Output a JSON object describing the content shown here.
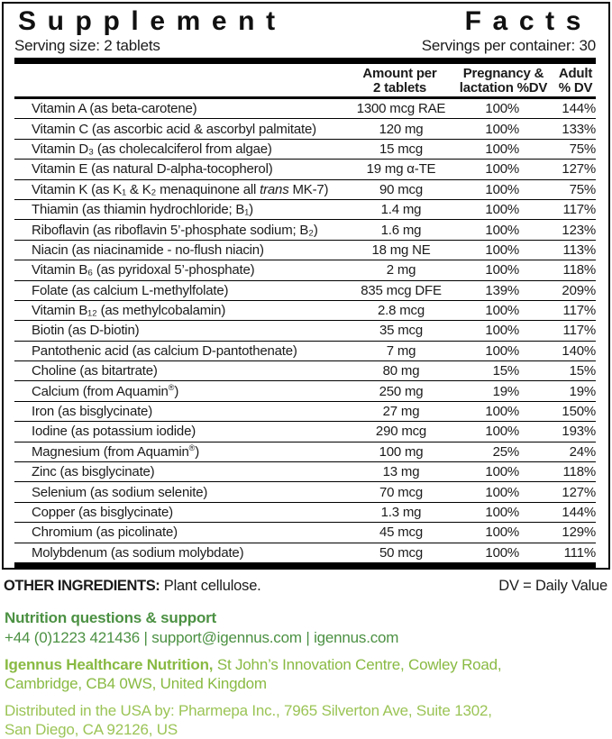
{
  "accent_colors": {
    "dark_green": "#4C9143",
    "lime_green": "#89BA43",
    "light_green": "#9BC456"
  },
  "header": {
    "title_left": "Supplement",
    "title_right": "Facts",
    "serving_size": "Serving size: 2 tablets",
    "servings_per_container": "Servings per container: 30"
  },
  "columns": {
    "amount_l1": "Amount per",
    "amount_l2": "2 tablets",
    "pregnancy_l1": "Pregnancy &",
    "pregnancy_l2": "lactation %DV",
    "adult_l1": "Adult",
    "adult_l2": "% DV"
  },
  "rows": [
    {
      "name": "Vitamin A (as beta-carotene)",
      "amount": "1300 mcg RAE",
      "pregnancy": "100%",
      "adult": "144%"
    },
    {
      "name": "Vitamin C (as ascorbic acid & ascorbyl palmitate)",
      "amount": "120 mg",
      "pregnancy": "100%",
      "adult": "133%"
    },
    {
      "name": "Vitamin D₃ (as cholecalciferol from algae)",
      "amount": "15 mcg",
      "pregnancy": "100%",
      "adult": "75%"
    },
    {
      "name": "Vitamin E (as natural D-alpha-tocopherol)",
      "amount": "19 mg α-TE",
      "pregnancy": "100%",
      "adult": "127%"
    },
    {
      "name": "Vitamin K (as K₁ & K₂ menaquinone all trans MK-7)",
      "em": "trans",
      "amount": "90 mcg",
      "pregnancy": "100%",
      "adult": "75%"
    },
    {
      "name": "Thiamin (as thiamin hydrochloride; B₁)",
      "amount": "1.4 mg",
      "pregnancy": "100%",
      "adult": "117%"
    },
    {
      "name": "Riboflavin (as riboflavin 5’-phosphate sodium; B₂)",
      "amount": "1.6 mg",
      "pregnancy": "100%",
      "adult": "123%"
    },
    {
      "name": "Niacin (as niacinamide - no-flush niacin)",
      "amount": "18 mg NE",
      "pregnancy": "100%",
      "adult": "113%"
    },
    {
      "name": "Vitamin B₆ (as pyridoxal 5’-phosphate)",
      "amount": "2 mg",
      "pregnancy": "100%",
      "adult": "118%"
    },
    {
      "name": "Folate (as calcium L-methylfolate)",
      "amount": "835 mcg DFE",
      "pregnancy": "139%",
      "adult": "209%"
    },
    {
      "name": "Vitamin B₁₂ (as methylcobalamin)",
      "amount": "2.8 mcg",
      "pregnancy": "100%",
      "adult": "117%"
    },
    {
      "name": "Biotin (as D-biotin)",
      "amount": "35 mcg",
      "pregnancy": "100%",
      "adult": "117%"
    },
    {
      "name": "Pantothenic acid (as calcium D-pantothenate)",
      "amount": "7 mg",
      "pregnancy": "100%",
      "adult": "140%"
    },
    {
      "name": "Choline (as bitartrate)",
      "amount": "80 mg",
      "pregnancy": "15%",
      "adult": "15%"
    },
    {
      "name": "Calcium (from Aquamin®)",
      "amount": "250 mg",
      "pregnancy": "19%",
      "adult": "19%"
    },
    {
      "name": "Iron (as bisglycinate)",
      "amount": "27 mg",
      "pregnancy": "100%",
      "adult": "150%"
    },
    {
      "name": "Iodine (as potassium iodide)",
      "amount": "290 mcg",
      "pregnancy": "100%",
      "adult": "193%"
    },
    {
      "name": "Magnesium (from Aquamin®)",
      "amount": "100 mg",
      "pregnancy": "25%",
      "adult": "24%"
    },
    {
      "name": "Zinc (as bisglycinate)",
      "amount": "13 mg",
      "pregnancy": "100%",
      "adult": "118%"
    },
    {
      "name": "Selenium (as sodium selenite)",
      "amount": "70 mcg",
      "pregnancy": "100%",
      "adult": "127%"
    },
    {
      "name": "Copper (as bisglycinate)",
      "amount": "1.3 mg",
      "pregnancy": "100%",
      "adult": "144%"
    },
    {
      "name": "Chromium (as picolinate)",
      "amount": "45 mcg",
      "pregnancy": "100%",
      "adult": "129%"
    },
    {
      "name": "Molybdenum (as sodium molybdate)",
      "amount": "50 mcg",
      "pregnancy": "100%",
      "adult": "111%"
    }
  ],
  "footer": {
    "other_ingredients_label": "OTHER INGREDIENTS:",
    "other_ingredients_value": "Plant cellulose.",
    "dv_note": "DV = Daily Value",
    "support_heading": "Nutrition questions & support",
    "support_contact": "+44 (0)1223 421436 | support@igennus.com | igennus.com",
    "company_bold": "Igennus Healthcare Nutrition,",
    "company_rest": " St John’s Innovation Centre, Cowley Road,",
    "company_line2": "Cambridge, CB4 0WS, United Kingdom",
    "distributor_line1": "Distributed in the USA by: Pharmepa Inc., 7965 Silverton Ave, Suite 1302,",
    "distributor_line2": "San Diego, CA 92126, US"
  }
}
